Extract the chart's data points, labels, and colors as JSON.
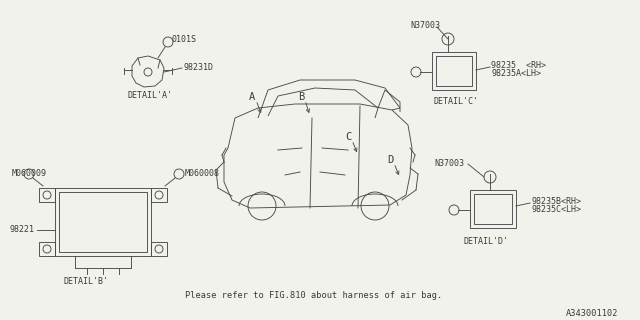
{
  "bg_color": "#f2f2ec",
  "line_color": "#4a4a4a",
  "text_color": "#3a3a3a",
  "diagram_number": "A343001102",
  "footer_text": "Please refer to FIG.810 about harness of air bag.",
  "labels": {
    "detail_a": "DETAIL'A'",
    "detail_b": "DETAIL'B'",
    "detail_c": "DETAIL'C'",
    "detail_d": "DETAIL'D'",
    "part_0101s": "0101S",
    "part_98231d": "98231D",
    "part_n37003_top": "N37003",
    "part_98235_rh": "98235  <RH>",
    "part_98235a_lh": "98235A<LH>",
    "part_m060009": "M060009",
    "part_m060008": "M060008",
    "part_98221": "98221",
    "part_n37003_bot": "N37003",
    "part_98235b_rh": "98235B<RH>",
    "part_98235c_lh": "98235C<LH>",
    "letter_a": "A",
    "letter_b": "B",
    "letter_c": "C",
    "letter_d": "D"
  }
}
